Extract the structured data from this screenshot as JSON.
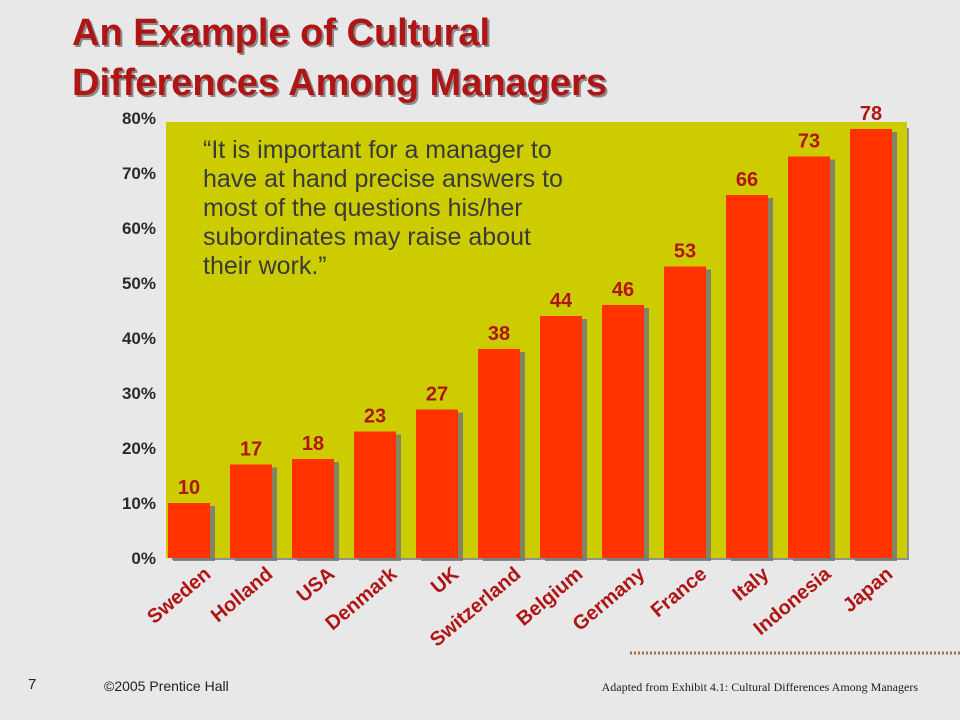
{
  "title": {
    "line1": "An Example of Cultural",
    "line2": "Differences Among Managers"
  },
  "quote": "“It is important for a manager to have at hand precise answers to most of the questions his/her subordinates may raise about their work.”",
  "footer": {
    "page_number": "7",
    "copyright": "©2005 Prentice Hall",
    "source": "Adapted from Exhibit 4.1: Cultural Differences Among Managers"
  },
  "colors": {
    "title": "#b01515",
    "plot_background": "#cccc00",
    "bar": "#ff3300",
    "label": "#b01515",
    "slide_background": "#e8e8e8"
  },
  "chart_data": {
    "type": "bar",
    "categories": [
      "Sweden",
      "Holland",
      "USA",
      "Denmark",
      "UK",
      "Switzerland",
      "Belgium",
      "Germany",
      "France",
      "Italy",
      "Indonesia",
      "Japan"
    ],
    "values": [
      10,
      17,
      18,
      23,
      27,
      38,
      44,
      46,
      53,
      66,
      73,
      78
    ],
    "data_labels": [
      "10",
      "17",
      "18",
      "23",
      "27",
      "38",
      "44",
      "46",
      "53",
      "66",
      "73",
      "78"
    ],
    "yticks": [
      "0%",
      "10%",
      "20%",
      "30%",
      "40%",
      "50%",
      "60%",
      "70%",
      "80%"
    ],
    "ylim": [
      0,
      80
    ],
    "grid": false,
    "legend": "none"
  }
}
